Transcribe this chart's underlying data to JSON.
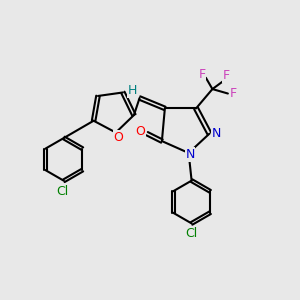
{
  "background_color": "#e8e8e8",
  "bond_color": "#000000",
  "bond_width": 1.5,
  "atoms": {
    "O_red": "#ff0000",
    "N_blue": "#0000cd",
    "F_magenta": "#cc44bb",
    "Cl_green": "#008000",
    "H_teal": "#008080"
  },
  "xlim": [
    0,
    10
  ],
  "ylim": [
    0,
    10
  ]
}
